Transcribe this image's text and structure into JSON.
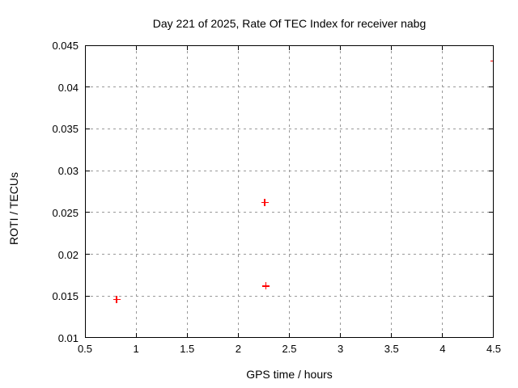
{
  "window": {
    "background": "#ffffff"
  },
  "chart_data": {
    "type": "scatter",
    "title": "Day 221 of 2025, Rate Of TEC Index for receiver nabg",
    "xlabel": "GPS time / hours",
    "ylabel": "ROTI / TECUs",
    "xlim": [
      0.5,
      4.5
    ],
    "ylim": [
      0.01,
      0.045
    ],
    "x_ticks": [
      "0.5",
      "1",
      "1.5",
      "2",
      "2.5",
      "3",
      "3.5",
      "4",
      "4.5"
    ],
    "y_ticks": [
      "0.01",
      "0.015",
      "0.02",
      "0.025",
      "0.03",
      "0.035",
      "0.04",
      "0.045"
    ],
    "grid": true,
    "legend": "none",
    "marker": "plus",
    "colors": {
      "marker": "#ff0000",
      "grid": "#9a9a9a",
      "border": "#000000",
      "text": "#000000"
    },
    "series": [
      {
        "name": "ROTI",
        "points": [
          {
            "x": 0.81,
            "y": 0.0146
          },
          {
            "x": 2.26,
            "y": 0.0262
          },
          {
            "x": 2.27,
            "y": 0.0162
          },
          {
            "x": 4.5,
            "y": 0.0431
          }
        ]
      }
    ]
  }
}
